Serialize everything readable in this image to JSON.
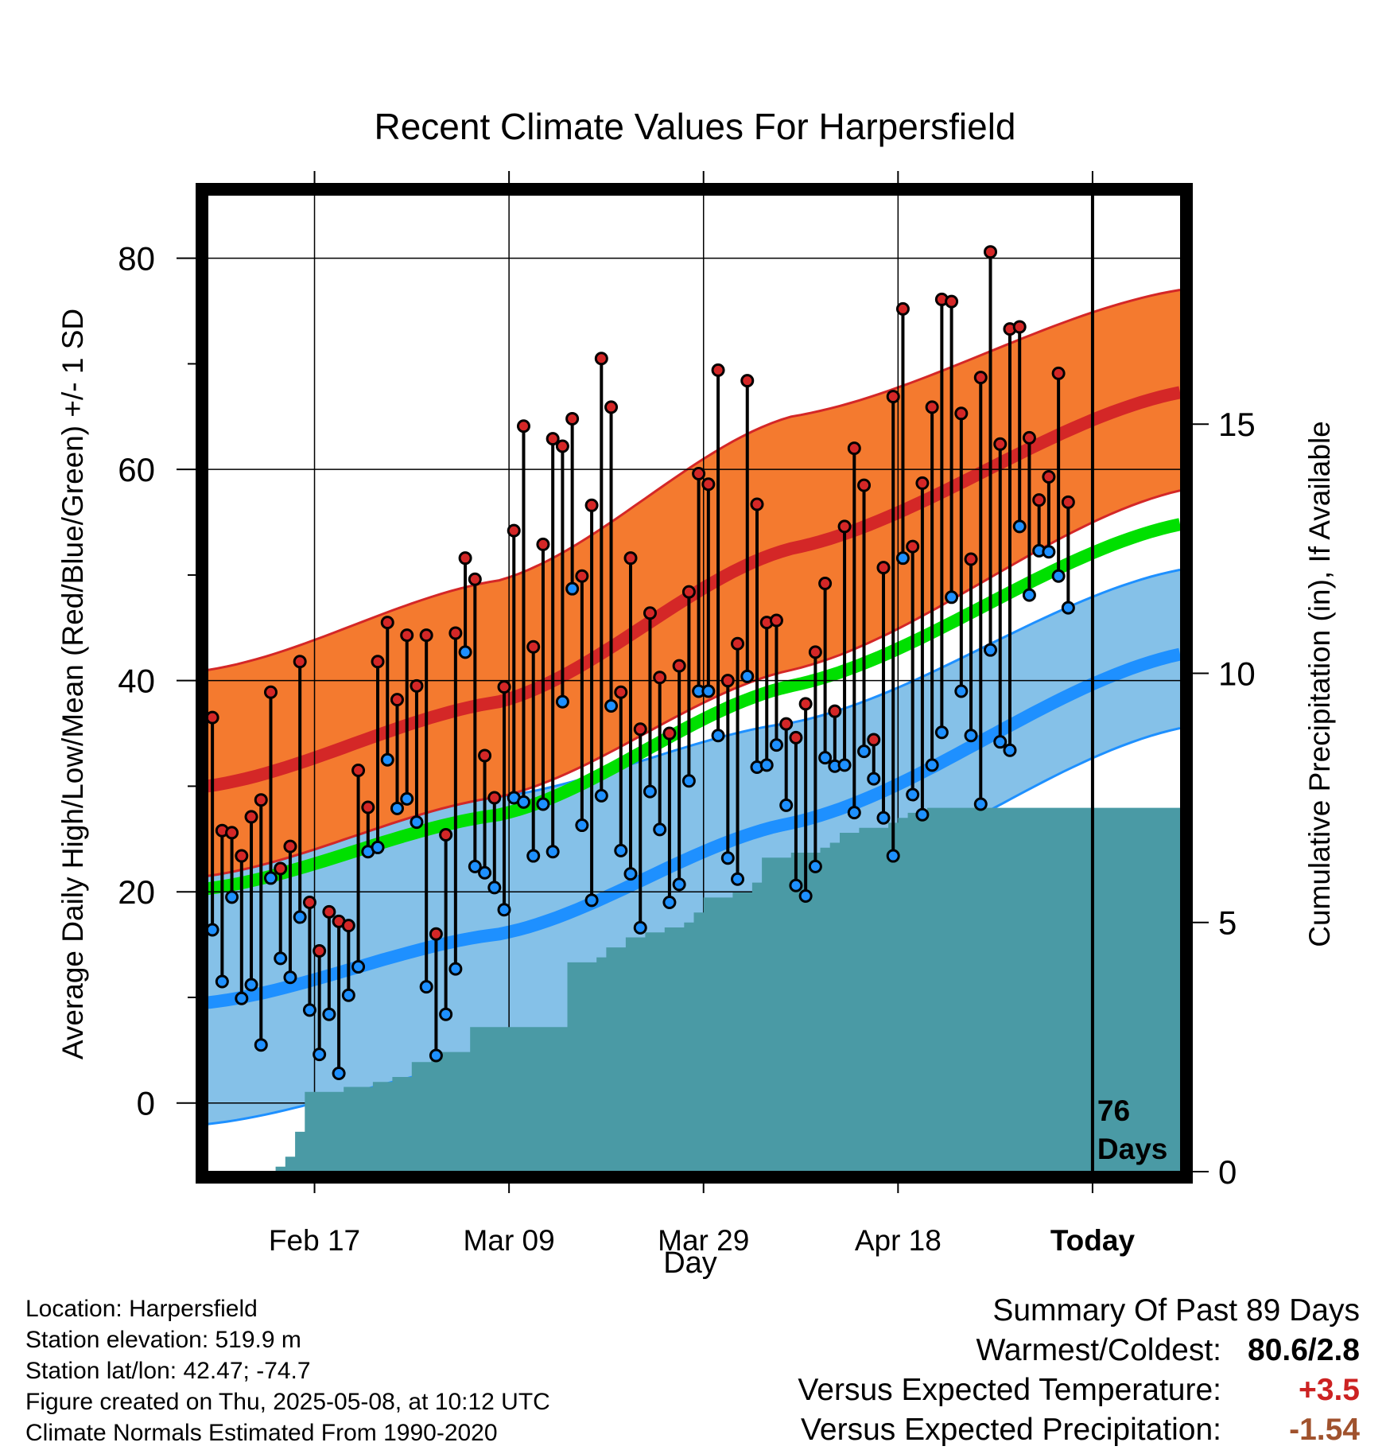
{
  "chart_data": {
    "type": "line",
    "title": "Recent Climate Values For Harpersfield",
    "xlabel": "Day",
    "ylabel": "Average Daily High/Low/Mean (Red/Blue/Green) +/- 1 SD",
    "y2label": "Cumulative Precipitation (in), If Available",
    "x_tick_labels": [
      "Feb 17",
      "Mar 09",
      "Mar 29",
      "Apr 18",
      "Today"
    ],
    "x_tick_days": [
      11,
      31,
      51,
      71,
      91
    ],
    "ylim": [
      -6.5,
      86
    ],
    "yticks": [
      0,
      20,
      40,
      60,
      80
    ],
    "y2lim": [
      0,
      19.6
    ],
    "y2ticks": [
      0,
      5,
      10,
      15
    ],
    "xlim": [
      0,
      100
    ],
    "today_day": 91,
    "today_annotation": "76\nDays",
    "colors": {
      "high": "#d42727",
      "high_band": "#f47a2f",
      "low": "#1e90ff",
      "low_band": "#85c1e8",
      "mean": "#00e000",
      "precip": "#4a9aa5"
    },
    "normals": {
      "high_mean": [
        [
          0,
          30.0
        ],
        [
          30,
          38.0
        ],
        [
          60,
          52.5
        ],
        [
          100,
          67.3
        ]
      ],
      "high_upper": [
        [
          0,
          41.0
        ],
        [
          30,
          49.5
        ],
        [
          60,
          65.0
        ],
        [
          100,
          77.0
        ]
      ],
      "high_lower": [
        [
          0,
          21.5
        ],
        [
          30,
          29.0
        ],
        [
          60,
          41.0
        ],
        [
          100,
          58.0
        ]
      ],
      "mean": [
        [
          0,
          20.3
        ],
        [
          30,
          27.3
        ],
        [
          60,
          39.5
        ],
        [
          100,
          54.8
        ]
      ],
      "low_mean": [
        [
          0,
          9.5
        ],
        [
          30,
          16.0
        ],
        [
          60,
          26.5
        ],
        [
          100,
          42.5
        ]
      ],
      "low_upper": [
        [
          0,
          21.5
        ],
        [
          30,
          29.0
        ],
        [
          60,
          36.0
        ],
        [
          100,
          50.5
        ]
      ],
      "low_lower": [
        [
          0,
          -2.0
        ],
        [
          30,
          4.0
        ],
        [
          60,
          19.5
        ],
        [
          100,
          35.5
        ]
      ]
    },
    "daily_high": [
      36.5,
      25.8,
      25.6,
      23.4,
      27.1,
      28.7,
      38.9,
      22.2,
      24.3,
      41.8,
      19.0,
      14.4,
      18.1,
      17.2,
      16.8,
      31.5,
      28.0,
      41.8,
      45.5,
      38.2,
      44.3,
      39.5,
      44.3,
      16.0,
      25.4,
      44.5,
      51.6,
      49.6,
      32.9,
      28.9,
      39.4,
      54.2,
      64.1,
      43.2,
      52.9,
      62.9,
      62.2,
      64.8,
      49.9,
      56.6,
      70.5,
      65.9,
      38.9,
      51.6,
      35.4,
      46.4,
      40.3,
      35.0,
      41.4,
      48.4,
      59.6,
      58.6,
      69.4,
      40.0,
      43.5,
      68.4,
      56.7,
      45.5,
      45.7,
      35.9,
      34.6,
      37.8,
      42.7,
      49.2,
      37.1,
      54.6,
      62.0,
      58.5,
      34.4,
      50.7,
      66.9,
      75.2,
      52.7,
      58.7,
      65.9,
      76.1,
      75.9,
      65.3,
      51.5,
      68.7,
      80.6,
      62.4,
      73.3,
      73.5,
      63.0,
      57.1,
      59.3,
      69.1,
      56.9
    ],
    "daily_low": [
      16.4,
      11.5,
      19.5,
      9.9,
      11.2,
      5.5,
      21.3,
      13.7,
      11.9,
      17.6,
      8.8,
      4.6,
      8.4,
      2.8,
      10.2,
      12.9,
      23.8,
      24.2,
      32.5,
      27.9,
      28.8,
      26.6,
      11.0,
      4.5,
      8.4,
      12.7,
      42.7,
      22.4,
      21.8,
      20.4,
      18.3,
      28.9,
      28.5,
      23.4,
      28.3,
      23.8,
      38.0,
      48.7,
      26.3,
      19.2,
      29.1,
      37.6,
      23.9,
      21.7,
      16.6,
      29.5,
      25.9,
      19.0,
      20.7,
      30.5,
      39.0,
      39.0,
      34.8,
      23.2,
      21.2,
      40.4,
      31.8,
      32.0,
      33.9,
      28.2,
      20.6,
      19.6,
      22.4,
      32.7,
      31.9,
      32.0,
      27.5,
      33.3,
      30.7,
      27.0,
      23.4,
      51.6,
      29.2,
      27.3,
      32.0,
      35.1,
      47.9,
      39.0,
      34.8,
      28.3,
      42.9,
      34.2,
      33.4,
      54.6,
      48.1,
      52.3,
      52.2,
      49.9,
      46.9
    ],
    "cumulative_precip": [
      [
        0,
        0
      ],
      [
        6,
        0
      ],
      [
        7,
        0.1
      ],
      [
        8,
        0.3
      ],
      [
        9,
        0.8
      ],
      [
        10,
        1.6
      ],
      [
        14,
        1.7
      ],
      [
        17,
        1.8
      ],
      [
        19,
        1.9
      ],
      [
        21,
        2.2
      ],
      [
        23,
        2.4
      ],
      [
        27,
        2.9
      ],
      [
        36,
        2.9
      ],
      [
        37,
        4.2
      ],
      [
        40,
        4.3
      ],
      [
        41,
        4.5
      ],
      [
        43,
        4.7
      ],
      [
        45,
        4.8
      ],
      [
        47,
        4.9
      ],
      [
        49,
        5.0
      ],
      [
        50,
        5.2
      ],
      [
        51,
        5.5
      ],
      [
        54,
        5.6
      ],
      [
        56,
        5.8
      ],
      [
        57,
        6.3
      ],
      [
        60,
        6.4
      ],
      [
        63,
        6.5
      ],
      [
        64,
        6.6
      ],
      [
        65,
        6.8
      ],
      [
        67,
        6.9
      ],
      [
        70,
        7.0
      ],
      [
        71,
        7.1
      ],
      [
        72,
        7.2
      ],
      [
        74,
        7.3
      ],
      [
        100,
        7.3
      ]
    ]
  },
  "footer": {
    "location": "Location: Harpersfield",
    "elevation": "Station elevation: 519.9 m",
    "latlon": "Station lat/lon: 42.47; -74.7",
    "created": "Figure created on Thu, 2025-05-08, at 10:12 UTC",
    "normals": "Climate Normals Estimated From 1990-2020"
  },
  "summary": {
    "heading": "Summary Of Past 89 Days",
    "warm_cold_label": "Warmest/Coldest:",
    "warm_cold_value": "80.6/2.8",
    "temp_label": "Versus Expected Temperature:",
    "temp_value": "+3.5",
    "temp_color": "#cc2222",
    "precip_label": "Versus Expected Precipitation:",
    "precip_value": "-1.54",
    "precip_color": "#a0522d"
  }
}
